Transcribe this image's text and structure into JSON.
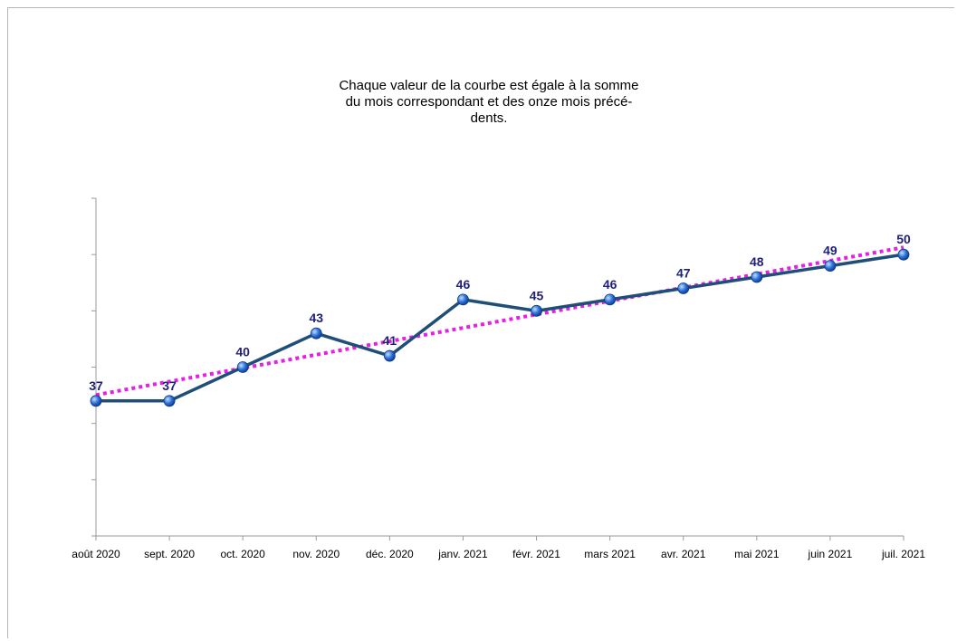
{
  "chart_data": {
    "type": "line",
    "title_lines": [
      "Chaque valeur de la courbe est égale à la somme",
      "du mois correspondant et des onze mois précé-",
      "dents."
    ],
    "categories": [
      "août 2020",
      "sept. 2020",
      "oct. 2020",
      "nov. 2020",
      "déc. 2020",
      "janv. 2021",
      "févr. 2021",
      "mars 2021",
      "avr. 2021",
      "mai 2021",
      "juin 2021",
      "juil. 2021"
    ],
    "series": [
      {
        "values": [
          37,
          37,
          40,
          43,
          41,
          46,
          45,
          46,
          47,
          48,
          49,
          50
        ],
        "data_labels": [
          "37",
          "37",
          "40",
          "43",
          "41",
          "46",
          "45",
          "46",
          "47",
          "48",
          "49",
          "50"
        ],
        "color": "#1f4e79",
        "marker_color": "#2e6fd6"
      }
    ],
    "trendline": {
      "type": "linear",
      "color": "#e61ee6",
      "style": "dotted"
    },
    "ylim": [
      25,
      55
    ],
    "y_axis_labels_visible": false,
    "grid": false,
    "legend": "none"
  }
}
